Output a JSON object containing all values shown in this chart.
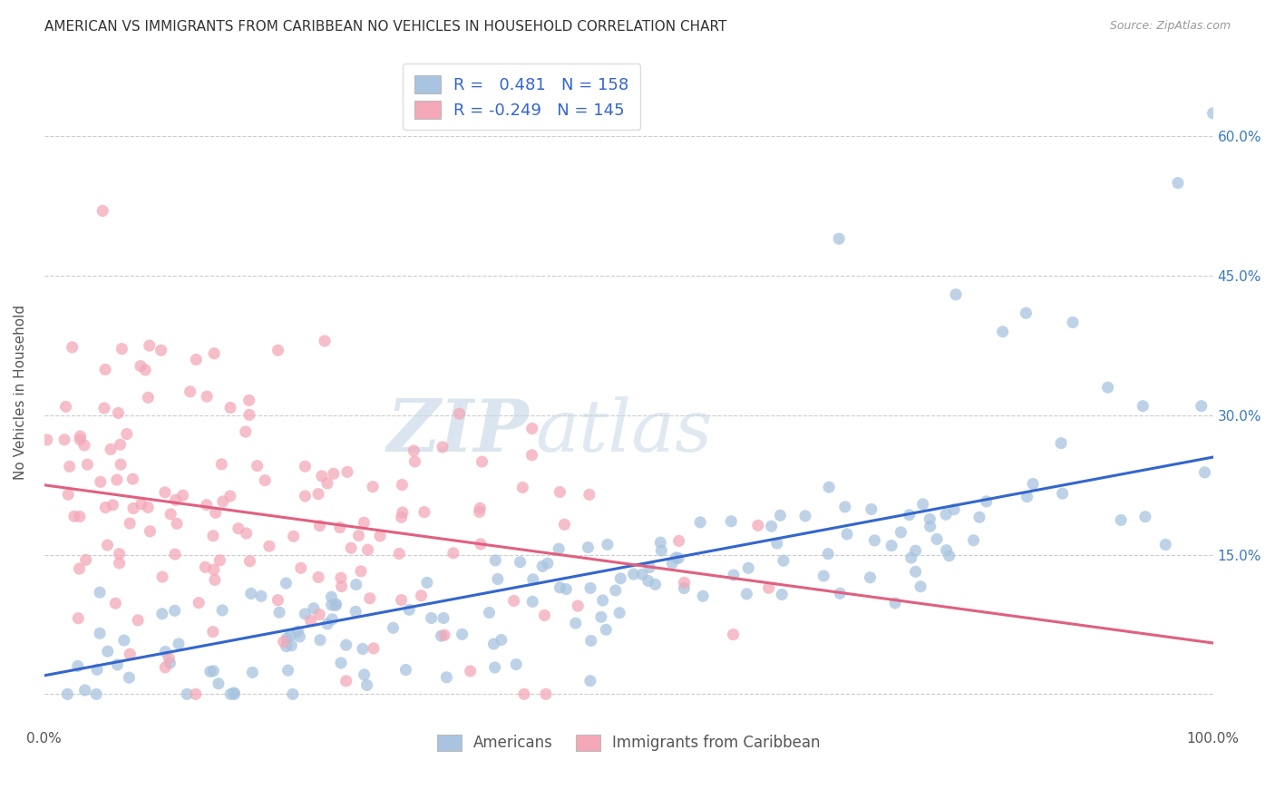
{
  "title": "AMERICAN VS IMMIGRANTS FROM CARIBBEAN NO VEHICLES IN HOUSEHOLD CORRELATION CHART",
  "source": "Source: ZipAtlas.com",
  "ylabel": "No Vehicles in Household",
  "xlim": [
    0,
    1.0
  ],
  "ylim": [
    -0.03,
    0.68
  ],
  "x_ticks": [
    0.0,
    0.25,
    0.5,
    0.75,
    1.0
  ],
  "x_tick_labels": [
    "0.0%",
    "",
    "",
    "",
    "100.0%"
  ],
  "y_ticks": [
    0.0,
    0.15,
    0.3,
    0.45,
    0.6
  ],
  "y_tick_labels_right": [
    "",
    "15.0%",
    "30.0%",
    "45.0%",
    "60.0%"
  ],
  "blue_R": 0.481,
  "blue_N": 158,
  "pink_R": -0.249,
  "pink_N": 145,
  "blue_color": "#a8c4e0",
  "pink_color": "#f4a8b8",
  "blue_line_color": "#3366cc",
  "pink_line_color": "#e06080",
  "watermark_zip": "ZIP",
  "watermark_atlas": "atlas",
  "background_color": "#ffffff",
  "legend_label_americans": "Americans",
  "legend_label_caribbean": "Immigrants from Caribbean",
  "title_fontsize": 11,
  "source_fontsize": 9,
  "blue_line_start_y": 0.02,
  "blue_line_end_y": 0.255,
  "pink_line_start_y": 0.225,
  "pink_line_end_y": 0.055
}
